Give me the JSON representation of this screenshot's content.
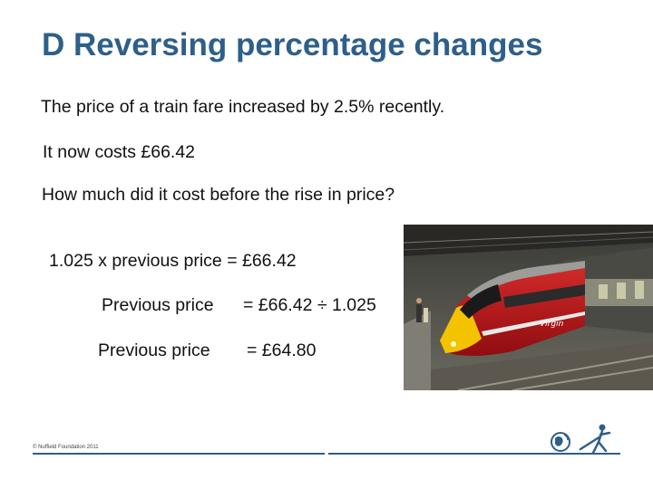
{
  "slide": {
    "title": "D  Reversing percentage changes",
    "lines": {
      "intro": "The price of a train fare increased by 2.5% recently.",
      "now_costs": "It now costs £66.42",
      "question": "How much did it cost before the rise in price?",
      "equation": "1.025 x previous price = £66.42",
      "step1_label": "Previous price",
      "step1_value": "= £66.42 ÷ 1.025",
      "step2_label": "Previous price",
      "step2_value": "= £64.80"
    }
  },
  "footer": {
    "copyright": "© Nuffield Foundation 2011"
  },
  "colors": {
    "title": "#2e5f8a",
    "rule": "#2e5f8a",
    "train_red": "#c8102e",
    "train_yellow": "#f3c300"
  },
  "icons": {
    "photo": "train-photo",
    "logo": "nuffield-globe-figure-icon"
  }
}
